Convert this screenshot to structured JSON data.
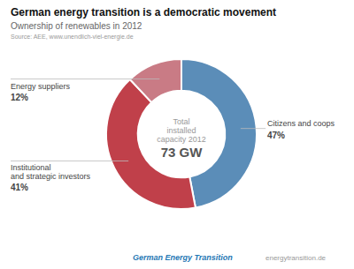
{
  "chart_data": {
    "type": "donut",
    "title": "German energy transition is a democratic movement",
    "subtitle": "Ownership of renewables in 2012",
    "source": "Source: AEE, www.unendlich-viel-energie.de",
    "categories": [
      "Citizens and coops",
      "Institutional\nand strategic investors",
      "Energy suppliers"
    ],
    "values": [
      47,
      41,
      12
    ],
    "value_labels": [
      "47%",
      "41%",
      "12%"
    ],
    "data_labels": true,
    "colors": [
      "#5b8db8",
      "#c0404a",
      "#c97b85"
    ],
    "annotations": [
      "Total",
      "installed",
      "capacity 2012",
      "73 GW",
      "German Energy Transition",
      "energytransition.de"
    ]
  }
}
